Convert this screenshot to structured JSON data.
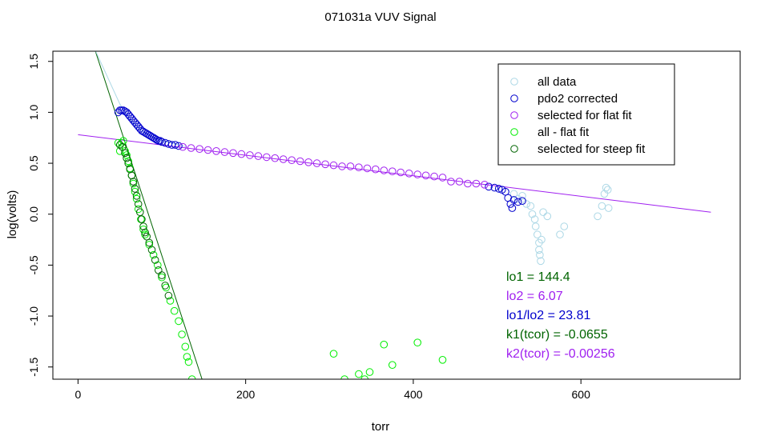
{
  "chart_data": {
    "type": "scatter",
    "title": "071031a   VUV Signal",
    "xlabel": "torr",
    "ylabel": "log(volts)",
    "xlim": [
      -30,
      790
    ],
    "ylim": [
      -1.62,
      1.6
    ],
    "xticks": [
      0,
      200,
      400,
      600
    ],
    "yticks": [
      -1.5,
      -1.0,
      -0.5,
      0.0,
      0.5,
      1.0,
      1.5
    ],
    "xtick_labels": [
      "0",
      "200",
      "400",
      "600"
    ],
    "ytick_labels": [
      "-1.5",
      "-1.0",
      "-0.5",
      "0.0",
      "0.5",
      "1.0",
      "1.5"
    ],
    "legend": {
      "position": "top-right",
      "entries": [
        {
          "label": "all data",
          "color": "#add8e6"
        },
        {
          "label": "pdo2 corrected",
          "color": "#0000cd"
        },
        {
          "label": "selected for flat fit",
          "color": "#a020f0"
        },
        {
          "label": "all - flat fit",
          "color": "#00ee00"
        },
        {
          "label": "selected for steep fit",
          "color": "#006400"
        }
      ]
    },
    "lines": [
      {
        "name": "flat fit",
        "color": "#a020f0",
        "x": [
          0,
          755
        ],
        "y": [
          0.78,
          0.02
        ]
      },
      {
        "name": "steep fit",
        "color": "#006400",
        "x": [
          20,
          148
        ],
        "y": [
          1.62,
          -1.62
        ]
      },
      {
        "name": "all data smooth",
        "color": "#add8e6",
        "x": [
          20,
          35,
          50,
          65,
          80,
          100,
          130
        ],
        "y": [
          1.62,
          1.35,
          1.08,
          0.9,
          0.8,
          0.72,
          0.66
        ]
      }
    ],
    "series": [
      {
        "name": "all data",
        "color": "#add8e6",
        "points": [
          [
            520,
            0.2
          ],
          [
            525,
            0.15
          ],
          [
            530,
            0.18
          ],
          [
            535,
            0.1
          ],
          [
            540,
            0.08
          ],
          [
            542,
            0.0
          ],
          [
            545,
            -0.05
          ],
          [
            546,
            -0.12
          ],
          [
            548,
            -0.2
          ],
          [
            550,
            -0.28
          ],
          [
            550,
            -0.35
          ],
          [
            551,
            -0.4
          ],
          [
            552,
            -0.46
          ],
          [
            553,
            -0.25
          ],
          [
            555,
            0.02
          ],
          [
            560,
            -0.02
          ],
          [
            575,
            -0.2
          ],
          [
            580,
            -0.12
          ],
          [
            620,
            -0.02
          ],
          [
            625,
            0.08
          ],
          [
            628,
            0.2
          ],
          [
            630,
            0.26
          ],
          [
            632,
            0.24
          ],
          [
            633,
            0.06
          ]
        ]
      },
      {
        "name": "pdo2 corrected",
        "color": "#0000cd",
        "points": [
          [
            48,
            1.0
          ],
          [
            50,
            1.02
          ],
          [
            52,
            1.02
          ],
          [
            54,
            1.02
          ],
          [
            56,
            1.01
          ],
          [
            58,
            1.0
          ],
          [
            60,
            0.98
          ],
          [
            62,
            0.96
          ],
          [
            64,
            0.94
          ],
          [
            66,
            0.92
          ],
          [
            68,
            0.9
          ],
          [
            70,
            0.88
          ],
          [
            72,
            0.86
          ],
          [
            74,
            0.84
          ],
          [
            76,
            0.82
          ],
          [
            78,
            0.81
          ],
          [
            80,
            0.8
          ],
          [
            82,
            0.79
          ],
          [
            84,
            0.78
          ],
          [
            86,
            0.77
          ],
          [
            88,
            0.76
          ],
          [
            90,
            0.75
          ],
          [
            92,
            0.74
          ],
          [
            94,
            0.73
          ],
          [
            96,
            0.72
          ],
          [
            98,
            0.72
          ],
          [
            100,
            0.71
          ],
          [
            104,
            0.7
          ],
          [
            108,
            0.69
          ],
          [
            112,
            0.68
          ],
          [
            116,
            0.68
          ],
          [
            120,
            0.67
          ],
          [
            490,
            0.27
          ],
          [
            497,
            0.26
          ],
          [
            502,
            0.25
          ],
          [
            506,
            0.24
          ],
          [
            510,
            0.22
          ],
          [
            513,
            0.16
          ],
          [
            516,
            0.1
          ],
          [
            518,
            0.06
          ],
          [
            520,
            0.14
          ],
          [
            525,
            0.12
          ],
          [
            530,
            0.13
          ]
        ]
      },
      {
        "name": "selected for flat fit",
        "color": "#a020f0",
        "points": [
          [
            125,
            0.66
          ],
          [
            135,
            0.65
          ],
          [
            145,
            0.64
          ],
          [
            155,
            0.63
          ],
          [
            165,
            0.62
          ],
          [
            175,
            0.61
          ],
          [
            185,
            0.6
          ],
          [
            195,
            0.59
          ],
          [
            205,
            0.58
          ],
          [
            215,
            0.57
          ],
          [
            225,
            0.56
          ],
          [
            235,
            0.55
          ],
          [
            245,
            0.54
          ],
          [
            255,
            0.53
          ],
          [
            265,
            0.52
          ],
          [
            275,
            0.51
          ],
          [
            285,
            0.5
          ],
          [
            295,
            0.49
          ],
          [
            305,
            0.48
          ],
          [
            315,
            0.47
          ],
          [
            325,
            0.47
          ],
          [
            335,
            0.46
          ],
          [
            345,
            0.45
          ],
          [
            355,
            0.44
          ],
          [
            365,
            0.43
          ],
          [
            375,
            0.42
          ],
          [
            385,
            0.41
          ],
          [
            395,
            0.4
          ],
          [
            405,
            0.39
          ],
          [
            415,
            0.38
          ],
          [
            425,
            0.37
          ],
          [
            435,
            0.36
          ],
          [
            445,
            0.32
          ],
          [
            455,
            0.32
          ],
          [
            465,
            0.3
          ],
          [
            475,
            0.3
          ],
          [
            485,
            0.29
          ]
        ]
      },
      {
        "name": "all - flat fit",
        "color": "#00ee00",
        "points": [
          [
            48,
            0.7
          ],
          [
            50,
            0.62
          ],
          [
            52,
            0.7
          ],
          [
            54,
            0.72
          ],
          [
            56,
            0.62
          ],
          [
            58,
            0.58
          ],
          [
            60,
            0.52
          ],
          [
            62,
            0.45
          ],
          [
            64,
            0.38
          ],
          [
            66,
            0.3
          ],
          [
            68,
            0.22
          ],
          [
            70,
            0.15
          ],
          [
            72,
            0.05
          ],
          [
            75,
            -0.05
          ],
          [
            78,
            -0.15
          ],
          [
            80,
            -0.2
          ],
          [
            85,
            -0.3
          ],
          [
            90,
            -0.4
          ],
          [
            95,
            -0.5
          ],
          [
            100,
            -0.62
          ],
          [
            105,
            -0.72
          ],
          [
            110,
            -0.85
          ],
          [
            115,
            -0.95
          ],
          [
            120,
            -1.05
          ],
          [
            124,
            -1.18
          ],
          [
            128,
            -1.3
          ],
          [
            130,
            -1.4
          ],
          [
            132,
            -1.45
          ],
          [
            136,
            -1.62
          ],
          [
            305,
            -1.37
          ],
          [
            318,
            -1.62
          ],
          [
            335,
            -1.57
          ],
          [
            342,
            -1.62
          ],
          [
            348,
            -1.55
          ],
          [
            365,
            -1.28
          ],
          [
            375,
            -1.48
          ],
          [
            405,
            -1.26
          ],
          [
            435,
            -1.43
          ]
        ]
      },
      {
        "name": "selected for steep fit",
        "color": "#006400",
        "points": [
          [
            50,
            0.68
          ],
          [
            53,
            0.66
          ],
          [
            56,
            0.6
          ],
          [
            58,
            0.55
          ],
          [
            60,
            0.5
          ],
          [
            62,
            0.44
          ],
          [
            64,
            0.38
          ],
          [
            66,
            0.32
          ],
          [
            68,
            0.25
          ],
          [
            70,
            0.18
          ],
          [
            72,
            0.1
          ],
          [
            74,
            0.02
          ],
          [
            76,
            -0.05
          ],
          [
            78,
            -0.12
          ],
          [
            80,
            -0.18
          ],
          [
            82,
            -0.22
          ],
          [
            85,
            -0.28
          ],
          [
            88,
            -0.35
          ],
          [
            92,
            -0.45
          ],
          [
            96,
            -0.55
          ],
          [
            100,
            -0.6
          ],
          [
            104,
            -0.7
          ],
          [
            108,
            -0.8
          ]
        ]
      }
    ],
    "annotations": [
      {
        "text": "lo1 =  144.4",
        "color": "#006400"
      },
      {
        "text": "lo2 =  6.07",
        "color": "#a020f0"
      },
      {
        "text": "lo1/lo2 =  23.81",
        "color": "#0000cd"
      },
      {
        "text": "k1(tcor) =  -0.0655",
        "color": "#006400"
      },
      {
        "text": "k2(tcor) =  -0.00256",
        "color": "#a020f0"
      }
    ]
  }
}
